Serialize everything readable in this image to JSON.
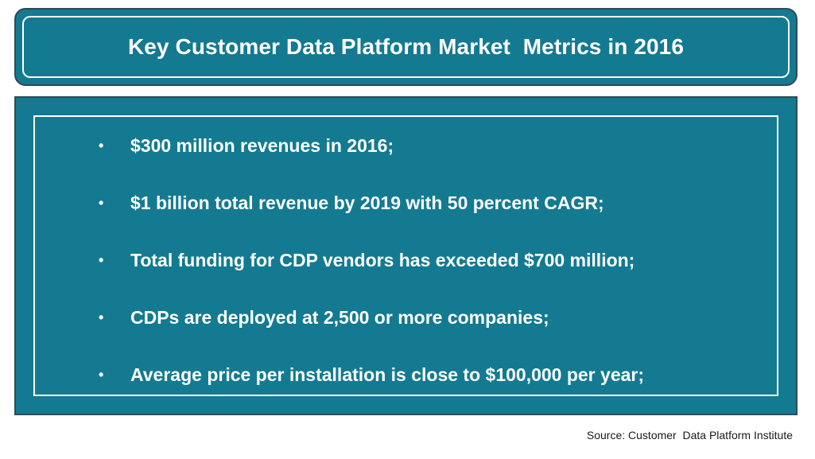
{
  "title": "Key Customer Data Platform Market  Metrics in 2016",
  "bullet_glyph": "•",
  "bullets": [
    "$300 million revenues in 2016;",
    "$1 billion total revenue by 2019 with 50 percent CAGR;",
    "Total funding for CDP vendors has exceeded $700 million;",
    "CDPs are deployed at 2,500 or more companies;",
    "Average price per installation is close to $100,000 per year;"
  ],
  "source": "Source: Customer  Data Platform Institute",
  "colors": {
    "panel_fill": "#137a91",
    "panel_border": "#2f4a55",
    "text": "#ffffff"
  }
}
